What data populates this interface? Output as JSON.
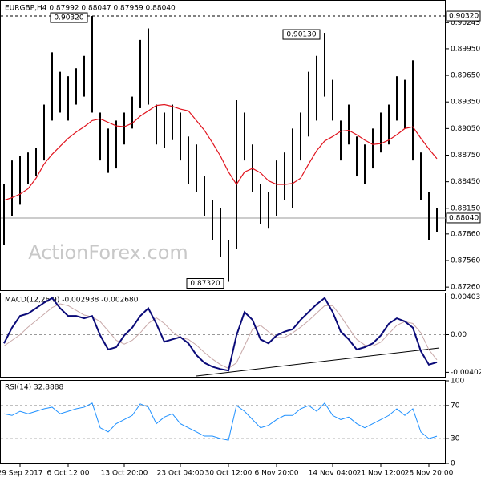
{
  "watermark": "ActionForex.com",
  "chart_data": [
    {
      "type": "ohlc",
      "title": "EURGBP,H4  0.87992 0.88047 0.87959 0.88040",
      "categories": [
        null,
        null,
        "29 Sep 2017",
        null,
        null,
        null,
        null,
        null,
        "6 Oct 12:00",
        null,
        null,
        null,
        null,
        null,
        null,
        "13 Oct 20:00",
        null,
        null,
        null,
        null,
        null,
        null,
        "23 Oct 04:00",
        null,
        null,
        null,
        null,
        null,
        "30 Oct 12:00",
        null,
        null,
        null,
        null,
        null,
        "6 Nov 20:00",
        null,
        null,
        null,
        null,
        null,
        null,
        "14 Nov 04:00",
        null,
        null,
        null,
        null,
        null,
        "21 Nov 12:00",
        null,
        null,
        null,
        null,
        null,
        "28 Nov 20:00",
        null
      ],
      "high": [
        0.8842,
        0.8869,
        0.8874,
        0.8878,
        0.8883,
        0.8932,
        0.8991,
        0.8969,
        0.8964,
        0.8973,
        0.8987,
        0.9032,
        0.8923,
        0.8905,
        0.8914,
        0.8923,
        0.8941,
        0.9005,
        0.9018,
        0.8932,
        0.8923,
        0.8932,
        0.8923,
        0.8896,
        0.8887,
        0.8851,
        0.8824,
        0.8815,
        0.8779,
        0.8937,
        0.8923,
        0.8887,
        0.8842,
        0.8833,
        0.8869,
        0.8878,
        0.8905,
        0.8923,
        0.8969,
        0.8987,
        0.9013,
        0.896,
        0.8914,
        0.8932,
        0.8896,
        0.8887,
        0.8905,
        0.8923,
        0.8932,
        0.8964,
        0.896,
        0.8982,
        0.8878,
        0.8833,
        0.8815
      ],
      "low": [
        0.8774,
        0.8806,
        0.8819,
        0.8842,
        0.8851,
        0.8869,
        0.8914,
        0.8923,
        0.8914,
        0.8932,
        0.8941,
        0.8923,
        0.8869,
        0.8855,
        0.886,
        0.8887,
        0.8905,
        0.8928,
        0.8932,
        0.8887,
        0.8883,
        0.8892,
        0.8869,
        0.8842,
        0.8833,
        0.8806,
        0.8779,
        0.876,
        0.8732,
        0.8769,
        0.8869,
        0.8833,
        0.8797,
        0.8792,
        0.8806,
        0.8824,
        0.8815,
        0.8869,
        0.8896,
        0.8914,
        0.8941,
        0.8914,
        0.8869,
        0.8887,
        0.8851,
        0.8842,
        0.886,
        0.8878,
        0.8887,
        0.8914,
        0.8905,
        0.8869,
        0.8824,
        0.8779,
        0.8788
      ],
      "color": "#000000",
      "ma": {
        "color": "#e0141e",
        "values": [
          0.8824,
          0.8827,
          0.8831,
          0.8837,
          0.8849,
          0.8865,
          0.8876,
          0.8885,
          0.8894,
          0.8901,
          0.8907,
          0.8914,
          0.8916,
          0.8912,
          0.8908,
          0.8907,
          0.8911,
          0.8919,
          0.8925,
          0.8931,
          0.8932,
          0.893,
          0.8927,
          0.8925,
          0.8914,
          0.8903,
          0.8889,
          0.8874,
          0.8856,
          0.8842,
          0.8856,
          0.886,
          0.8855,
          0.8846,
          0.8842,
          0.8842,
          0.8843,
          0.8849,
          0.8865,
          0.888,
          0.8891,
          0.8896,
          0.8902,
          0.8903,
          0.8898,
          0.8892,
          0.8887,
          0.8888,
          0.8892,
          0.8898,
          0.8905,
          0.8907,
          0.8894,
          0.8882,
          0.8871
        ]
      },
      "ylim": [
        0.87225,
        0.90429
      ],
      "yticks": [
        {
          "value": 0.90245,
          "label": "0.90245"
        },
        {
          "value": 0.8995,
          "label": "0.89950"
        },
        {
          "value": 0.8965,
          "label": "0.89650"
        },
        {
          "value": 0.8935,
          "label": "0.89350"
        },
        {
          "value": 0.8905,
          "label": "0.89050"
        },
        {
          "value": 0.8875,
          "label": "0.88750"
        },
        {
          "value": 0.8845,
          "label": "0.88450"
        },
        {
          "value": 0.8815,
          "label": "0.88150"
        },
        {
          "value": 0.8786,
          "label": "0.87860"
        },
        {
          "value": 0.8756,
          "label": "0.87560"
        },
        {
          "value": 0.8726,
          "label": "0.87260"
        }
      ],
      "price_lines": [
        {
          "value": 0.9032,
          "label": "0.90320"
        },
        {
          "value": 0.8804,
          "label": "0.88040"
        }
      ],
      "annotations": [
        {
          "value": 0.9032,
          "label": "0.90320"
        },
        {
          "value": 0.9013,
          "label": "0.90130"
        },
        {
          "value": 0.8732,
          "label": "0.87320"
        }
      ]
    },
    {
      "type": "line",
      "title": "MACD(12,26,9) -0.002938 -0.002680",
      "series": [
        {
          "color": "#0a0a78",
          "values": [
            -0.00092,
            0.00075,
            0.002,
            0.00225,
            0.00283,
            0.00342,
            0.00392,
            0.00283,
            0.002,
            0.002,
            0.00175,
            0.002,
            -8e-05,
            -0.00158,
            -0.00133,
            -8e-05,
            0.00075,
            0.002,
            0.00283,
            0.00117,
            -0.00075,
            -0.0005,
            -0.00025,
            -0.00092,
            -0.00217,
            -0.003,
            -0.00342,
            -0.00367,
            -0.00383,
            -8e-05,
            0.00242,
            0.00158,
            -0.0005,
            -0.00092,
            -8e-05,
            0.00033,
            0.00058,
            0.00158,
            0.00242,
            0.00325,
            0.00392,
            0.00242,
            0.00033,
            -0.0005,
            -0.00158,
            -0.00133,
            -0.00092,
            -8e-05,
            0.00117,
            0.00175,
            0.00142,
            0.00075,
            -0.00175,
            -0.0032,
            -0.002938
          ]
        },
        {
          "color": "#c8a8a8",
          "values": [
            -0.0012,
            -0.0006,
            0.0,
            0.0008,
            0.0015,
            0.0022,
            0.0029,
            0.0033,
            0.0031,
            0.0026,
            0.0021,
            0.0019,
            0.0014,
            0.0004,
            -0.0006,
            -0.001,
            -0.0006,
            0.0002,
            0.0012,
            0.0018,
            0.0012,
            0.0003,
            -0.0003,
            -0.0005,
            -0.0011,
            -0.0019,
            -0.0026,
            -0.0032,
            -0.0036,
            -0.003,
            -0.0012,
            0.0006,
            0.001,
            0.0003,
            -0.0003,
            -0.0003,
            0.0002,
            0.0008,
            0.0015,
            0.0023,
            0.0031,
            0.0031,
            0.002,
            0.0007,
            -0.0005,
            -0.0011,
            -0.0012,
            -0.0008,
            0.0001,
            0.001,
            0.0014,
            0.0012,
            0.0002,
            -0.0016,
            -0.00268
          ]
        }
      ],
      "ylim": [
        -0.0045,
        0.0045
      ],
      "yticks": [
        {
          "value": 0.00403,
          "label": "0.00403"
        },
        {
          "value": 0,
          "label": "0.00"
        },
        {
          "value": -0.004021,
          "label": "-0.004021"
        }
      ]
    },
    {
      "type": "line",
      "title": "RSI(14) 32.8888",
      "series": [
        {
          "color": "#1e90ff",
          "values": [
            60,
            58,
            63,
            60,
            63,
            66,
            68,
            60,
            63,
            66,
            68,
            73,
            43,
            38,
            48,
            53,
            58,
            72,
            68,
            48,
            56,
            60,
            48,
            43,
            38,
            33,
            33,
            30,
            28,
            70,
            63,
            53,
            43,
            46,
            53,
            58,
            58,
            66,
            70,
            63,
            73,
            58,
            53,
            56,
            48,
            43,
            48,
            53,
            58,
            66,
            58,
            66,
            38,
            30,
            32.8888
          ]
        }
      ],
      "ylim": [
        0,
        100
      ],
      "yticks": [
        100,
        70,
        30,
        0
      ]
    }
  ]
}
